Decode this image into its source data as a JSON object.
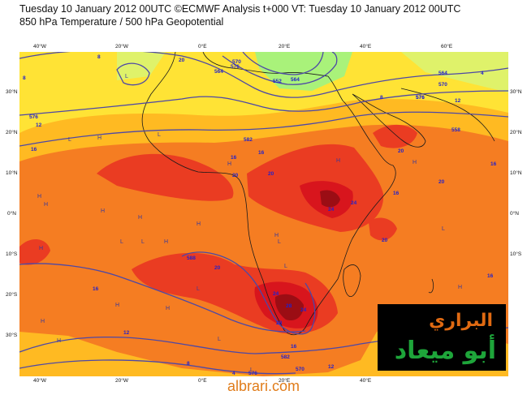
{
  "header": {
    "line1": "Tuesday 10 January 2012 00UTC ©ECMWF Analysis t+000 VT: Tuesday 10 January 2012 00UTC",
    "line2": "850 hPa Temperature / 500 hPa Geopotential"
  },
  "axes": {
    "lon_labels": [
      "40°W",
      "20°W",
      "0°E",
      "20°E",
      "40°E",
      "60°E"
    ],
    "lat_labels": [
      "30°N",
      "20°N",
      "10°N",
      "0°N",
      "10°S",
      "20°S",
      "30°S"
    ]
  },
  "map": {
    "contour_labels": [
      "8",
      "576",
      "12",
      "8",
      "16",
      "564",
      "576",
      "20",
      "570",
      "576",
      "564",
      "558",
      "552",
      "564",
      "570",
      "576",
      "582",
      "4",
      "8",
      "12",
      "16",
      "16",
      "20",
      "20",
      "24",
      "20",
      "16",
      "24",
      "20",
      "588",
      "16",
      "20",
      "24",
      "20",
      "28",
      "24",
      "16",
      "12",
      "582",
      "16",
      "576",
      "570",
      "12",
      "4",
      "8",
      "16",
      "28"
    ],
    "pressure_markers": [
      "L",
      "L",
      "L",
      "H",
      "H",
      "H",
      "H",
      "H",
      "H",
      "H",
      "H",
      "L",
      "L",
      "L",
      "H",
      "H",
      "H",
      "H",
      "H",
      "L",
      "H",
      "H",
      "H",
      "L",
      "L",
      "H",
      "L",
      "L"
    ],
    "colors": {
      "band_0_4": "#a9f27a",
      "band_4_8": "#dff26a",
      "band_8_12": "#ffe335",
      "band_12_16": "#ffba22",
      "band_16_20": "#f57d22",
      "band_20_24": "#ea3c22",
      "band_24_28": "#d8151d",
      "band_28_plus": "#9b0d14",
      "geopotential_contours": "#4d48a6",
      "coastlines": "#1a1a1a",
      "temperature_labels": "#2222cc"
    }
  },
  "watermark": {
    "line1": "البراري",
    "line2": "أبو ميعاد",
    "site": "albrari.com"
  }
}
